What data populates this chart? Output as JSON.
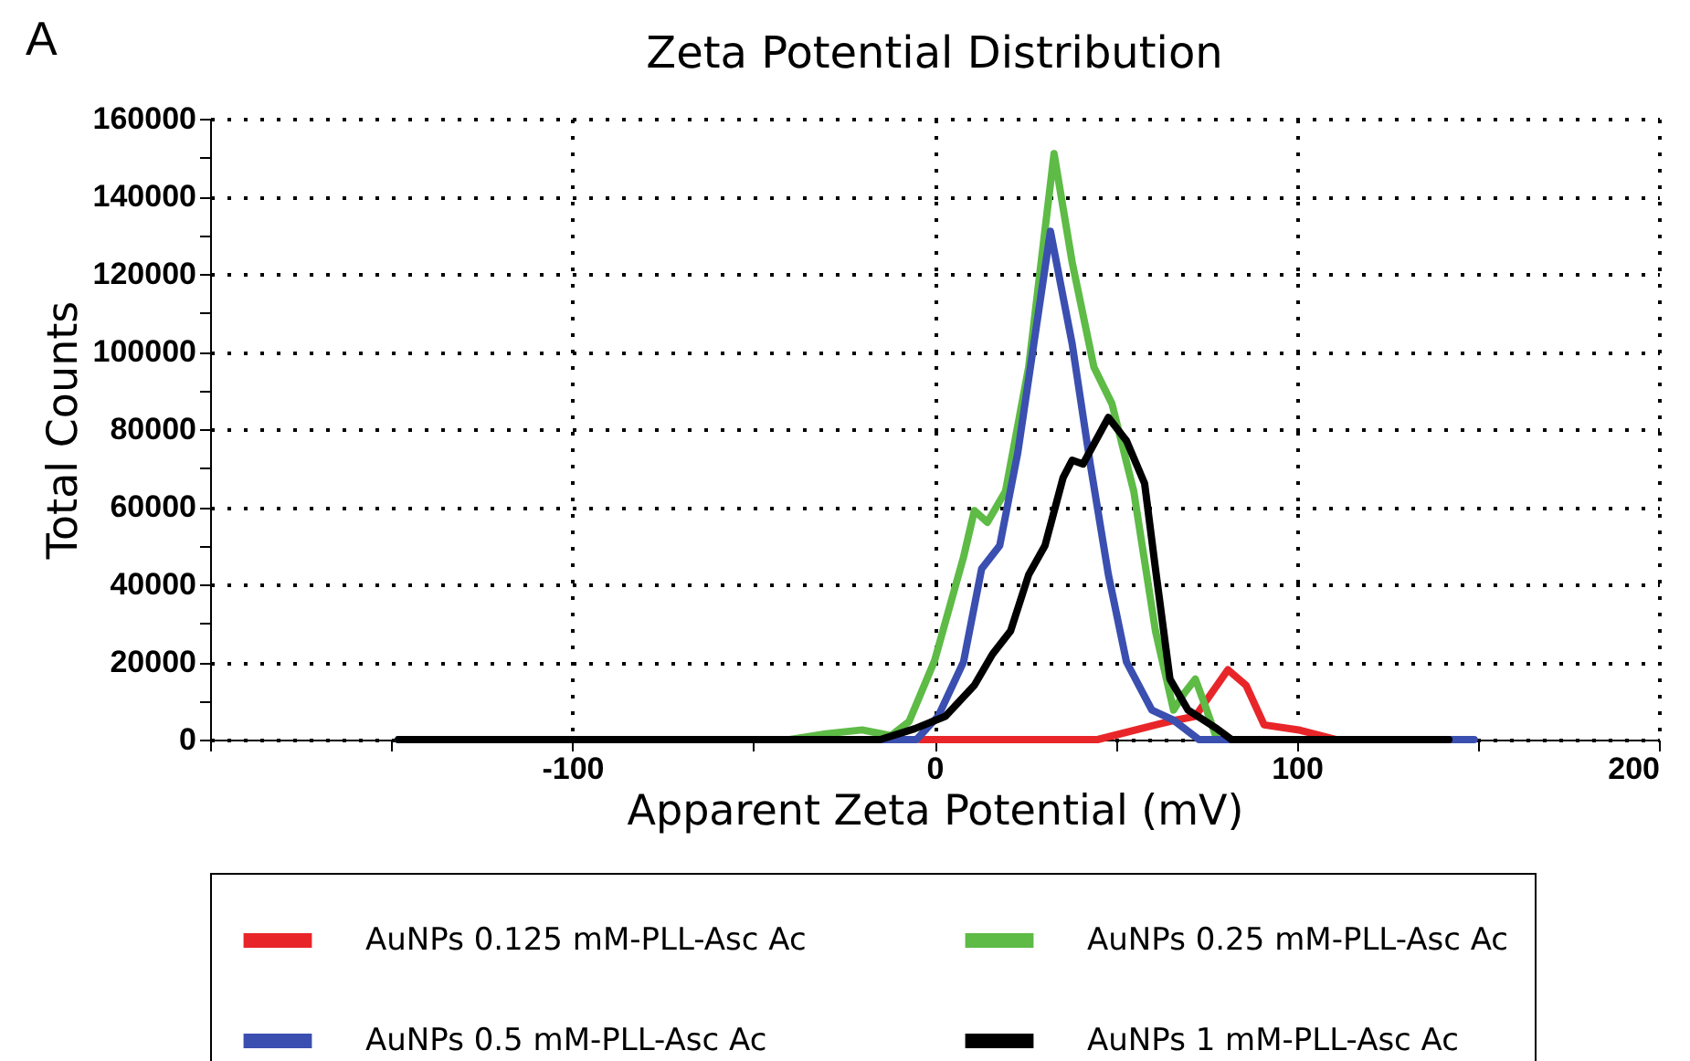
{
  "chart_data": {
    "type": "line",
    "title": "Zeta Potential Distribution",
    "xlabel": "Apparent Zeta Potential (mV)",
    "ylabel": "Total Counts",
    "annotations": [
      "A"
    ],
    "xlim": [
      -200,
      200
    ],
    "xticks": [
      {
        "value": -200,
        "label": null
      },
      {
        "value": -150,
        "label": null
      },
      -100,
      {
        "value": -50,
        "label": null
      },
      0,
      {
        "value": 50,
        "label": null
      },
      100,
      {
        "value": 150,
        "label": null
      },
      200
    ],
    "ylim": [
      0,
      160000
    ],
    "yticks": [
      0,
      {
        "value": 10000,
        "label": null
      },
      20000,
      {
        "value": 30000,
        "label": null
      },
      40000,
      {
        "value": 50000,
        "label": null
      },
      60000,
      {
        "value": 70000,
        "label": null
      },
      80000,
      {
        "value": 90000,
        "label": null
      },
      100000,
      {
        "value": 110000,
        "label": null
      },
      120000,
      {
        "value": 130000,
        "label": null
      },
      140000,
      {
        "value": 150000,
        "label": null
      },
      160000
    ],
    "grid": true,
    "legend": "bottom",
    "marker": "none",
    "line_style": "solid",
    "series": [
      {
        "name": "AuNPs 0.125 mM-PLL-Asc Ac",
        "color": "#e8262a",
        "x": [
          -4,
          45,
          65,
          72,
          81,
          86,
          91,
          101,
          111,
          148
        ],
        "values": [
          0,
          0,
          4700,
          6000,
          18000,
          14000,
          3800,
          2400,
          0,
          0
        ]
      },
      {
        "name": "AuNPs 0.25 mM-PLL-Asc Ac",
        "color": "#5dbb46",
        "x": [
          -148,
          -40,
          -30,
          -20,
          -12,
          -7,
          0,
          8,
          11,
          14.6,
          19.6,
          26,
          33,
          38,
          44,
          49,
          55,
          61,
          66,
          69,
          72,
          75,
          78,
          148
        ],
        "values": [
          0,
          0,
          1500,
          2500,
          1000,
          4700,
          20300,
          47000,
          59000,
          56000,
          64000,
          96000,
          151000,
          123000,
          96000,
          86500,
          64000,
          28000,
          7600,
          12000,
          15600,
          8000,
          0,
          0
        ]
      },
      {
        "name": "AuNPs 0.5 mM-PLL-Asc Ac",
        "color": "#3a4fb0",
        "x": [
          -148,
          -5,
          1,
          8,
          13,
          18,
          23,
          32,
          38,
          43,
          48,
          53,
          60,
          66,
          73,
          149
        ],
        "values": [
          0,
          0,
          6000,
          20000,
          44000,
          50000,
          74000,
          131000,
          102000,
          71000,
          42500,
          20000,
          7600,
          5000,
          0,
          0
        ]
      },
      {
        "name": "AuNPs 1 mM-PLL-Asc Ac",
        "color": "#000000",
        "x": [
          -148,
          -15,
          -5.5,
          3,
          11,
          16,
          21,
          26,
          30.5,
          35.5,
          38,
          41,
          48,
          53,
          58,
          61,
          65,
          70,
          78,
          82,
          142
        ],
        "values": [
          0,
          0,
          2800,
          6000,
          14000,
          22000,
          28000,
          42500,
          50000,
          67500,
          72000,
          71000,
          83000,
          77000,
          66000,
          44000,
          15600,
          7600,
          2800,
          0,
          0
        ]
      }
    ]
  }
}
